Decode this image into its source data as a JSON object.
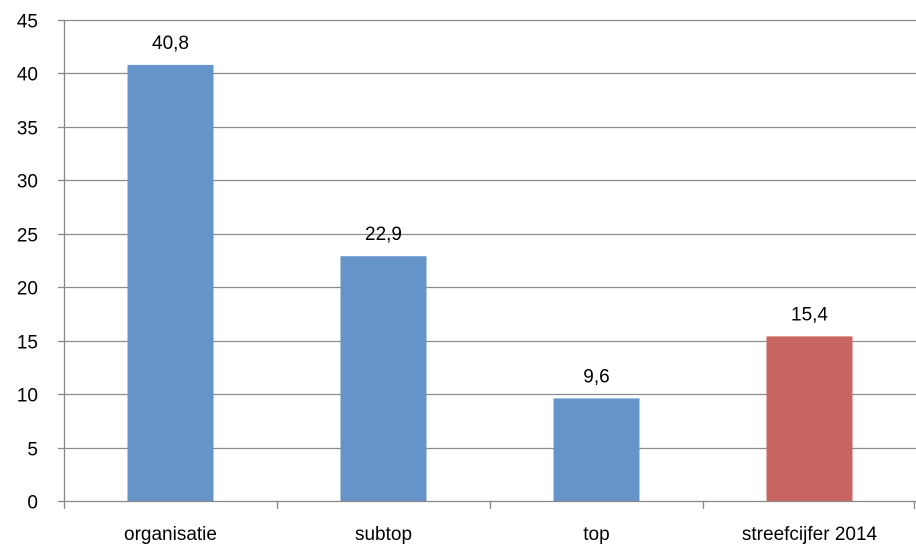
{
  "chart_data": {
    "type": "bar",
    "categories": [
      "organisatie",
      "subtop",
      "top",
      "streefcijfer 2014"
    ],
    "values": [
      40.8,
      22.9,
      9.6,
      15.4
    ],
    "data_labels": [
      "40,8",
      "22,9",
      "9,6",
      "15,4"
    ],
    "bar_colors": [
      "#6594C8",
      "#6594C8",
      "#6594C8",
      "#C96560"
    ],
    "title": "",
    "xlabel": "",
    "ylabel": "",
    "ylim": [
      0,
      45
    ],
    "yticks": [
      0,
      5,
      10,
      15,
      20,
      25,
      30,
      35,
      40,
      45
    ],
    "grid": true,
    "legend": "none",
    "colors": {
      "axis": "#888888",
      "grid": "#8C8C8C"
    }
  }
}
